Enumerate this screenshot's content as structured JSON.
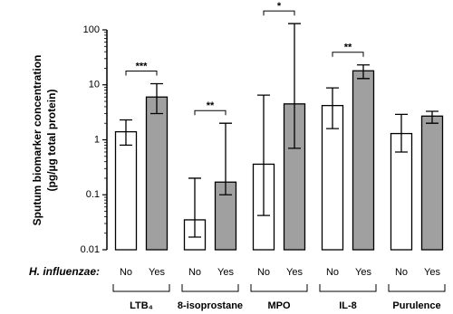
{
  "chart_data": {
    "type": "bar",
    "ylabel": [
      "Sputum biomarker concentration",
      "(pg/µg total protein)"
    ],
    "xlabel": "H. influenzae:",
    "categories": [
      "LTB₄",
      "8-isoprostane",
      "MPO",
      "IL-8",
      "Purulence"
    ],
    "series": [
      {
        "name": "No",
        "color": "#ffffff",
        "values": [
          1.4,
          0.035,
          0.36,
          4.2,
          1.3
        ],
        "low": [
          0.8,
          0.017,
          0.042,
          1.6,
          0.6
        ],
        "high": [
          2.3,
          0.2,
          6.5,
          8.8,
          2.9
        ]
      },
      {
        "name": "Yes",
        "color": "#a0a0a0",
        "values": [
          6,
          0.17,
          4.5,
          18,
          2.7
        ],
        "low": [
          3,
          0.1,
          0.7,
          13,
          2
        ],
        "high": [
          10.5,
          2,
          130,
          23,
          3.3
        ]
      }
    ],
    "log_scale": true,
    "ylim": [
      0.01,
      100
    ],
    "yticks": [
      0.01,
      0.1,
      1,
      10,
      100
    ],
    "significance": [
      "***",
      "**",
      "*",
      "**",
      null
    ]
  }
}
